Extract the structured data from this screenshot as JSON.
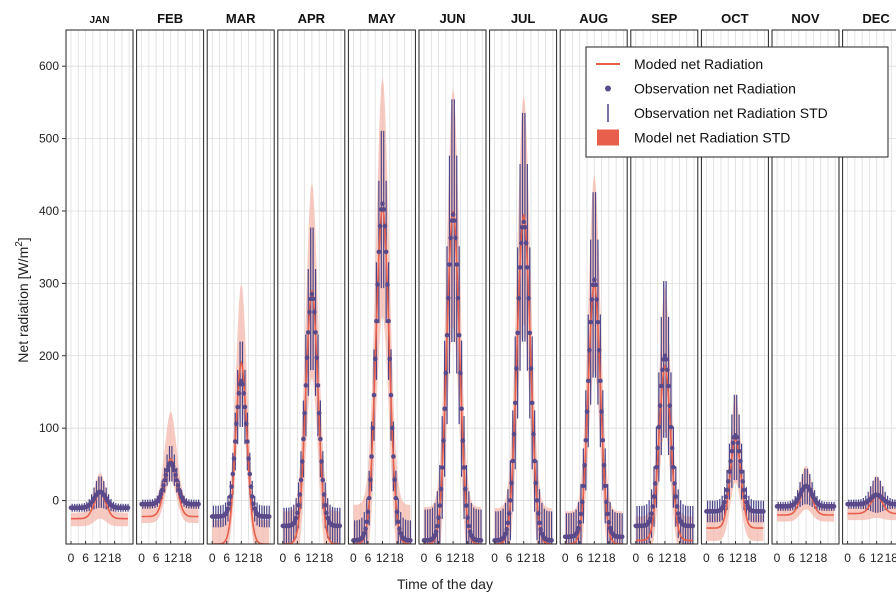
{
  "chart_data": {
    "type": "line",
    "ylabel": "Net radiation [W/m²]",
    "xlabel": "Time of the day",
    "ylim": [
      -60,
      650
    ],
    "y_ticks": [
      0,
      100,
      200,
      300,
      400,
      500,
      600
    ],
    "x_ticks": [
      0,
      6,
      12,
      18
    ],
    "x_tick_labels": [
      "0",
      "6",
      "12",
      "18"
    ],
    "legend_position": "top-right",
    "colors": {
      "model": "#e8604c",
      "model_std": "#f4b8ae",
      "observation": "#5b4a8a",
      "obs_std": "#4a4488"
    },
    "legend": [
      {
        "label": "Moded net Radiation",
        "symbol": "line"
      },
      {
        "label": "Observation net Radiation",
        "symbol": "dot"
      },
      {
        "label": "Observation net Radiation STD",
        "symbol": "errorbar"
      },
      {
        "label": "Model net Radiation STD",
        "symbol": "patch"
      }
    ],
    "panels": [
      {
        "month": "JAN",
        "baseline": -10,
        "peak": 12,
        "model_base": -25,
        "model_peak": 10,
        "width": 2.4,
        "std_up": 28,
        "std_down": 35,
        "obs_std": 22
      },
      {
        "month": "FEB",
        "baseline": -5,
        "peak": 52,
        "model_base": -22,
        "model_peak": 58,
        "width": 2.4,
        "std_up": 65,
        "std_down": 30,
        "obs_std": 25
      },
      {
        "month": "MAR",
        "baseline": -22,
        "peak": 165,
        "model_base": -60,
        "model_peak": 190,
        "width": 2.3,
        "std_up": 110,
        "std_down": 60,
        "obs_std": 60
      },
      {
        "month": "APR",
        "baseline": -35,
        "peak": 285,
        "model_base": -60,
        "model_peak": 290,
        "width": 2.5,
        "std_up": 150,
        "std_down": 120,
        "obs_std": 100
      },
      {
        "month": "MAY",
        "baseline": -55,
        "peak": 410,
        "model_base": -60,
        "model_peak": 405,
        "width": 2.7,
        "std_up": 180,
        "std_down": 150,
        "obs_std": 110
      },
      {
        "month": "JUN",
        "baseline": -55,
        "peak": 395,
        "model_base": -60,
        "model_peak": 400,
        "width": 2.6,
        "std_up": 170,
        "std_down": 160,
        "obs_std": 170
      },
      {
        "month": "JUL",
        "baseline": -55,
        "peak": 385,
        "model_base": -60,
        "model_peak": 395,
        "width": 2.7,
        "std_up": 165,
        "std_down": 150,
        "obs_std": 160
      },
      {
        "month": "AUG",
        "baseline": -50,
        "peak": 305,
        "model_base": -60,
        "model_peak": 300,
        "width": 2.5,
        "std_up": 150,
        "std_down": 120,
        "obs_std": 130
      },
      {
        "month": "SEP",
        "baseline": -35,
        "peak": 200,
        "model_base": -55,
        "model_peak": 185,
        "width": 2.4,
        "std_up": 110,
        "std_down": 90,
        "obs_std": 110
      },
      {
        "month": "OCT",
        "baseline": -15,
        "peak": 90,
        "model_base": -38,
        "model_peak": 85,
        "width": 2.2,
        "std_up": 60,
        "std_down": 60,
        "obs_std": 60
      },
      {
        "month": "NOV",
        "baseline": -8,
        "peak": 20,
        "model_base": -20,
        "model_peak": 18,
        "width": 2.4,
        "std_up": 30,
        "std_down": 30,
        "obs_std": 25
      },
      {
        "month": "DEC",
        "baseline": -5,
        "peak": 8,
        "model_base": -18,
        "model_peak": 6,
        "width": 2.4,
        "std_up": 28,
        "std_down": 30,
        "obs_std": 25
      }
    ]
  }
}
